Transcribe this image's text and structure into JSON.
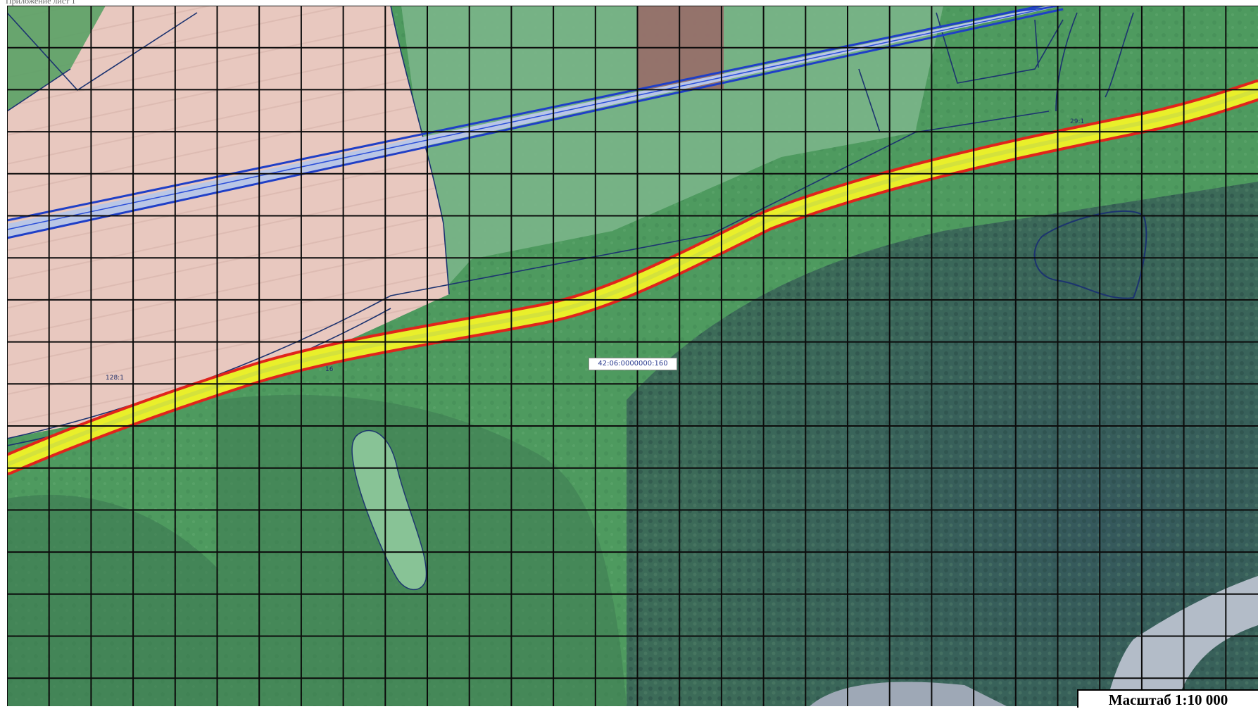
{
  "header_text": "Приложение лист 1",
  "parcel_label": "42:06:0000000:160",
  "scale_label": "Масштаб 1:10 000",
  "plot_numbers": [
    "29:1",
    "128:1",
    "16"
  ],
  "legend_colors": {
    "grid": "#0b0b0b",
    "road_boundary": "#1f3fc7",
    "road_fill": "#b9c6e6",
    "corridor_edge": "#e0241c",
    "corridor_fill": "#e9ef2a",
    "parcel_line": "#1c3370",
    "arable_land": "#e8c8bf",
    "meadow": "#4f9a5c",
    "forest": "#2f5f56",
    "river": "#b3bcc8"
  }
}
